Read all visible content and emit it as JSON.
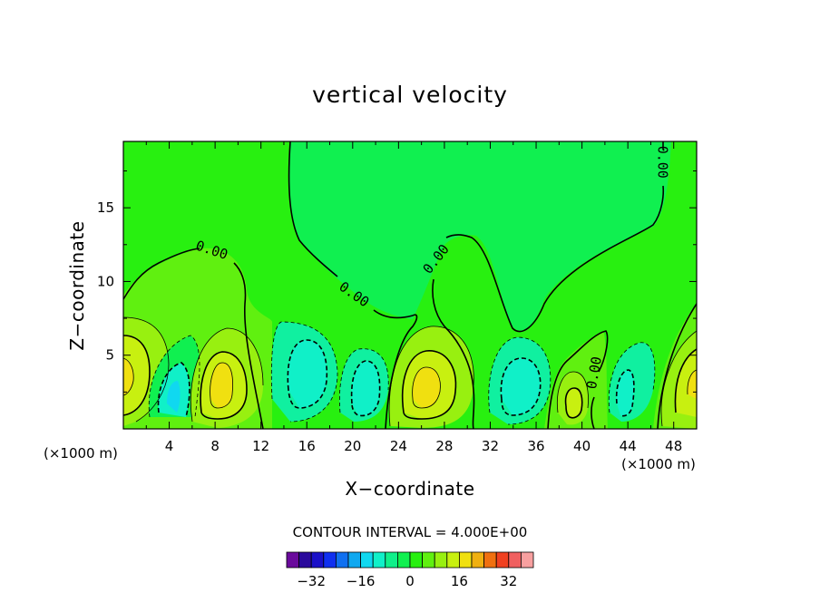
{
  "chart_data": {
    "type": "heatmap",
    "title": "vertical velocity",
    "xlabel": "X−coordinate",
    "ylabel": "Z−coordinate",
    "x_unit_left": "(×1000 m)",
    "x_unit_right": "(×1000 m)",
    "xlim": [
      0,
      50
    ],
    "ylim": [
      0,
      19.5
    ],
    "x_ticks": [
      4,
      8,
      12,
      16,
      20,
      24,
      28,
      32,
      36,
      40,
      44,
      48
    ],
    "x_tick_labels": [
      "4",
      "8",
      "12",
      "16",
      "20",
      "24",
      "28",
      "32",
      "36",
      "40",
      "44",
      "48"
    ],
    "y_ticks": [
      5,
      10,
      15
    ],
    "y_tick_labels": [
      "5",
      "10",
      "15"
    ],
    "contour_labels": [
      {
        "text": "0.00",
        "x": 7.7,
        "z": 12.1,
        "angle": 18
      },
      {
        "text": "0.00",
        "x": 20.1,
        "z": 9.1,
        "angle": 35
      },
      {
        "text": "0.00",
        "x": 27.3,
        "z": 11.5,
        "angle": -52
      },
      {
        "text": "0.00",
        "x": 47.0,
        "z": 18.1,
        "angle": 90
      },
      {
        "text": "0.00",
        "x": 41.1,
        "z": 3.8,
        "angle": -80
      }
    ],
    "contour_interval_text": "CONTOUR INTERVAL = 4.000E+00",
    "contour_interval": 4.0,
    "colorbar": {
      "tick_values": [
        -32,
        -16,
        0,
        16,
        32
      ],
      "tick_labels": [
        "−32",
        "−16",
        "0",
        "16",
        "32"
      ],
      "levels": [
        -40,
        -36,
        -32,
        -28,
        -24,
        -20,
        -16,
        -12,
        -8,
        -4,
        0,
        4,
        8,
        12,
        16,
        20,
        24,
        28,
        32,
        36,
        40
      ],
      "colors": [
        "#6a0a9c",
        "#2a0a9c",
        "#1a10c8",
        "#1030f0",
        "#1070f0",
        "#10a8f0",
        "#10d8f0",
        "#10f0c8",
        "#10f08a",
        "#10f050",
        "#28f010",
        "#60f010",
        "#98f010",
        "#c8f010",
        "#f0e010",
        "#f0b010",
        "#f07010",
        "#f04020",
        "#f06060",
        "#f8a0a0"
      ]
    },
    "regions": [
      {
        "label": "background",
        "value": 2,
        "color": "#28f010"
      },
      {
        "label": "upper-left positive lobe",
        "value": 2,
        "color": "#60f010",
        "center": [
          6,
          9.5
        ]
      },
      {
        "label": "updraft x1",
        "value": 14,
        "color": "#c8f010",
        "center": [
          0.6,
          3.5
        ]
      },
      {
        "label": "downdraft x4.5",
        "value": -8,
        "color": "#10f0c8",
        "center": [
          4.5,
          2.2
        ]
      },
      {
        "label": "updraft x8",
        "value": 12,
        "color": "#c8f010",
        "center": [
          7.8,
          2.9
        ]
      },
      {
        "label": "downdraft x15.5",
        "value": -6,
        "color": "#10f0c8",
        "center": [
          15.5,
          3.5
        ]
      },
      {
        "label": "downdraft x21",
        "value": -6,
        "color": "#10f0c8",
        "center": [
          21,
          3.0
        ]
      },
      {
        "label": "updraft x26",
        "value": 14,
        "color": "#c8f010",
        "center": [
          26,
          3.0
        ]
      },
      {
        "label": "downdraft x34",
        "value": -6,
        "color": "#10f0c8",
        "center": [
          34,
          3.0
        ]
      },
      {
        "label": "updraft x39",
        "value": 10,
        "color": "#c8f010",
        "center": [
          39,
          2.0
        ]
      },
      {
        "label": "downdraft x43.5",
        "value": -4,
        "color": "#10f0a0",
        "center": [
          43.5,
          2.5
        ]
      },
      {
        "label": "updraft x49.8",
        "value": 12,
        "color": "#c8f010",
        "center": [
          49.8,
          3.0
        ]
      }
    ]
  }
}
